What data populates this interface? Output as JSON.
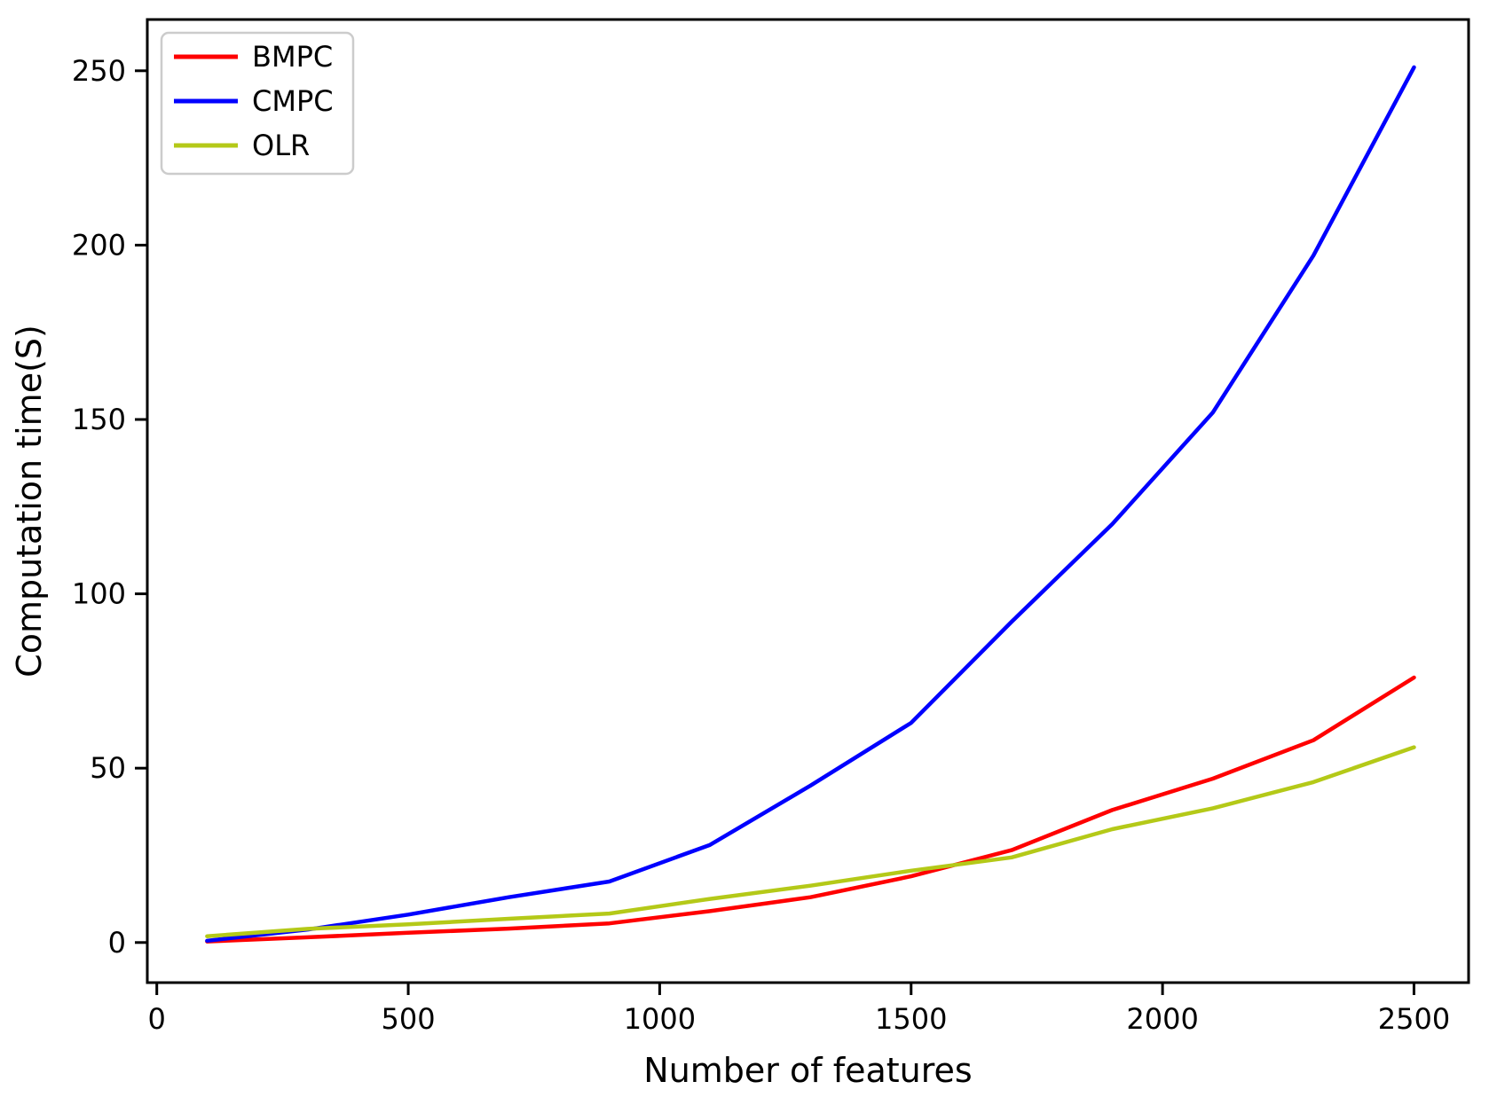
{
  "figure": {
    "background": "#ffffff",
    "spine_color": "#000000",
    "tick_color": "#000000",
    "legend_border_color": "#cccccc",
    "legend_background": "#ffffff"
  },
  "chart_data": {
    "type": "line",
    "title": "",
    "xlabel": "Number of features",
    "ylabel": "Computation time(S)",
    "x_ticks": [
      0,
      500,
      1000,
      1500,
      2000,
      2500
    ],
    "y_ticks": [
      0,
      50,
      100,
      150,
      200,
      250
    ],
    "xlim": [
      -18.9,
      2608.6
    ],
    "ylim": [
      -11.5,
      264.7
    ],
    "grid": false,
    "legend_position": "upper-left",
    "x": [
      100,
      300,
      500,
      700,
      900,
      1100,
      1300,
      1500,
      1700,
      1900,
      2100,
      2300,
      2500
    ],
    "series": [
      {
        "name": "BMPC",
        "color": "#ff0000",
        "values": [
          0.3,
          1.5,
          2.8,
          4.0,
          5.5,
          9.0,
          13.0,
          19.0,
          26.5,
          38.0,
          47.0,
          58.0,
          76.0
        ]
      },
      {
        "name": "CMPC",
        "color": "#0000ff",
        "values": [
          0.5,
          3.7,
          8.0,
          13.0,
          17.5,
          28.0,
          45.0,
          63.0,
          92.0,
          120.0,
          152.0,
          197.0,
          251.0
        ]
      },
      {
        "name": "OLR",
        "color": "#b4c918",
        "values": [
          1.8,
          3.9,
          5.2,
          6.8,
          8.3,
          12.5,
          16.3,
          20.6,
          24.4,
          32.5,
          38.5,
          46.0,
          56.0
        ]
      }
    ]
  }
}
